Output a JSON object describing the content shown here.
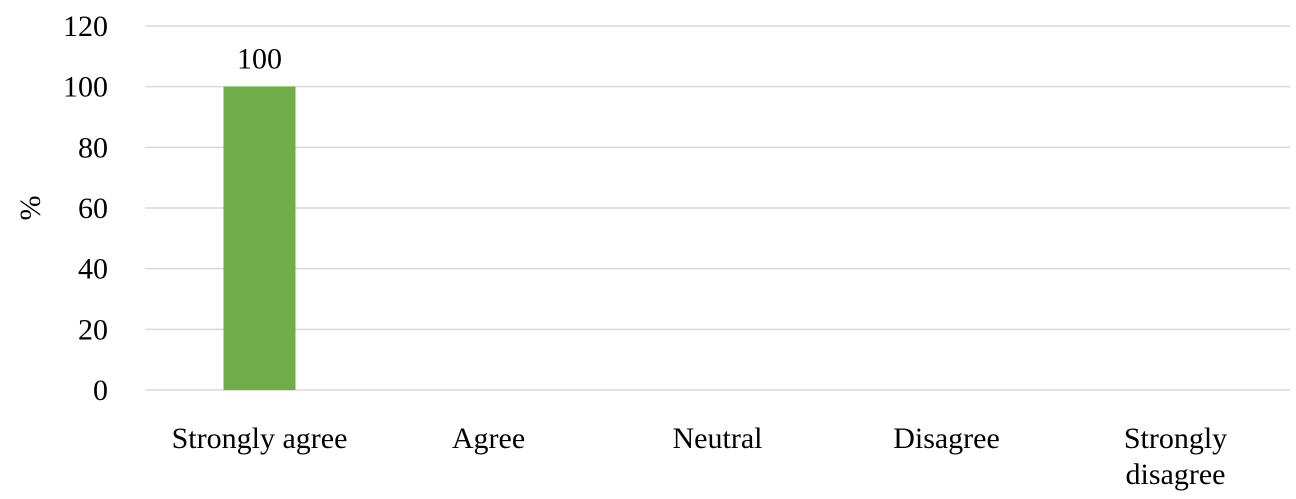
{
  "chart_data": {
    "type": "bar",
    "categories": [
      "Strongly agree",
      "Agree",
      "Neutral",
      "Disagree",
      "Strongly disagree"
    ],
    "category_lines": [
      [
        "Strongly agree"
      ],
      [
        "Agree"
      ],
      [
        "Neutral"
      ],
      [
        "Disagree"
      ],
      [
        "Strongly",
        "disagree"
      ]
    ],
    "values": [
      100,
      0,
      0,
      0,
      0
    ],
    "data_labels": [
      "100",
      "",
      "",
      "",
      ""
    ],
    "ylabel": "%",
    "ylim": [
      0,
      120
    ],
    "yticks": [
      0,
      20,
      40,
      60,
      80,
      100,
      120
    ],
    "grid": true,
    "legend": "none",
    "colors": {
      "bar": "#70ad47",
      "grid": "#d9d9d9"
    }
  }
}
